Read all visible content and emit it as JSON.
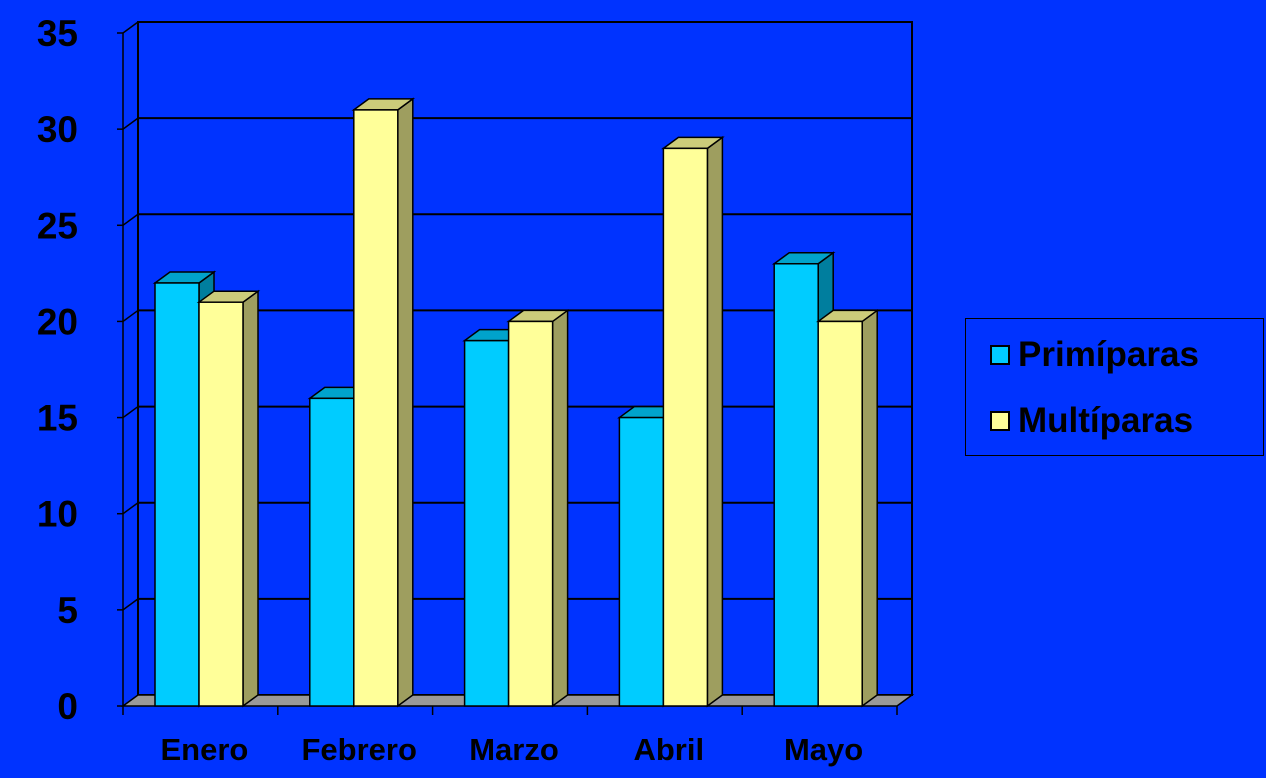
{
  "chart_data": {
    "type": "bar",
    "categories": [
      "Enero",
      "Febrero",
      "Marzo",
      "Abril",
      "Mayo"
    ],
    "series": [
      {
        "name": "Primíparas",
        "values": [
          22,
          16,
          19,
          15,
          23
        ],
        "color": "#00ccff"
      },
      {
        "name": "Multíparas",
        "values": [
          21,
          31,
          20,
          29,
          20
        ],
        "color": "#ffff99"
      }
    ],
    "yticks": [
      "0",
      "5",
      "10",
      "15",
      "20",
      "25",
      "30",
      "35"
    ],
    "ylim": [
      0,
      35
    ],
    "grid": true,
    "legend_position": "right",
    "style": "3d-clustered-column",
    "title": "",
    "xlabel": "",
    "ylabel": ""
  },
  "colors": {
    "background": "#0033ff",
    "floor": "#999999"
  }
}
